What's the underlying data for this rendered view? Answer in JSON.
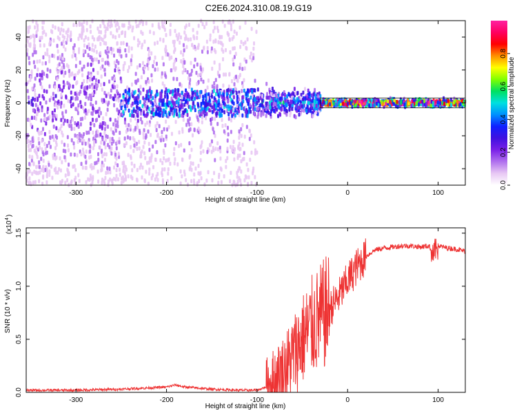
{
  "title": "C2E6.2024.310.08.19.G19",
  "chart_data": [
    {
      "type": "heatmap",
      "xlabel": "Height of straight line (km)",
      "ylabel": "Frequency (Hz)",
      "xlim": [
        -355,
        130
      ],
      "ylim": [
        -50,
        50
      ],
      "x_ticks": [
        -300,
        -200,
        -100,
        0,
        100
      ],
      "y_ticks": [
        -40,
        -20,
        0,
        20,
        40
      ],
      "colorbar": {
        "label": "Normalized spectral amplitude",
        "range": [
          0,
          1
        ],
        "ticks": [
          "0.0",
          "0.2",
          "0.4",
          "0.6",
          "0.8"
        ],
        "colors": [
          "#ffffff",
          "#e8c8f4",
          "#b070ee",
          "#7a20e8",
          "#4010e0",
          "#1020ff",
          "#0090ff",
          "#00e0e0",
          "#00e060",
          "#80ff00",
          "#ffff00",
          "#ff9000",
          "#ff0000",
          "#ff0060",
          "#ff20a0"
        ]
      },
      "regions": [
        {
          "x": [
            -355,
            -250
          ],
          "spread_hz": 50,
          "level": 0.18
        },
        {
          "x": [
            -250,
            -100
          ],
          "spread_hz": 50,
          "level": 0.15,
          "core_hz": 8,
          "core_level": 0.35
        },
        {
          "x": [
            -100,
            -30
          ],
          "spread_hz": 12,
          "level": 0.4
        },
        {
          "x": [
            -30,
            130
          ],
          "spread_hz": 3,
          "level": 0.85
        }
      ]
    },
    {
      "type": "line",
      "xlabel": "Height of straight line (km)",
      "ylabel": "SNR (10 * v/v)",
      "scale_label": "(x10",
      "scale_exp": "4",
      "xlim": [
        -355,
        130
      ],
      "ylim": [
        0,
        1.55
      ],
      "x_ticks": [
        -300,
        -200,
        -100,
        0,
        100
      ],
      "y_ticks": [
        "0.0",
        "0.5",
        "1.0",
        "1.5"
      ],
      "series": [
        {
          "color": "#ee3333",
          "x": [
            -355,
            -300,
            -250,
            -200,
            -190,
            -180,
            -150,
            -120,
            -100,
            -90,
            -80,
            -70,
            -60,
            -50,
            -40,
            -30,
            -20,
            -10,
            0,
            10,
            20,
            30,
            40,
            50,
            60,
            70,
            80,
            90,
            95,
            100,
            110,
            120,
            130
          ],
          "y": [
            0.02,
            0.02,
            0.03,
            0.05,
            0.07,
            0.05,
            0.03,
            0.02,
            0.02,
            0.05,
            0.12,
            0.2,
            0.35,
            0.5,
            0.62,
            0.7,
            0.78,
            0.9,
            1.05,
            1.18,
            1.28,
            1.34,
            1.36,
            1.37,
            1.38,
            1.38,
            1.37,
            1.38,
            1.3,
            1.38,
            1.36,
            1.35,
            1.33
          ]
        }
      ]
    }
  ]
}
